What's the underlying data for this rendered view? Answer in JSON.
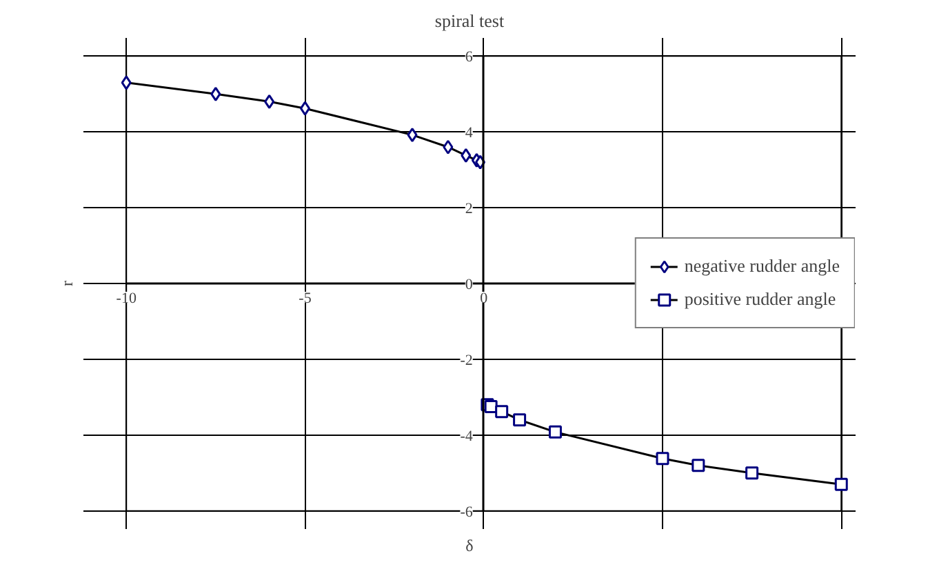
{
  "chart_data": {
    "type": "line",
    "title": "spiral test",
    "xlabel": "δ",
    "ylabel": "r",
    "xlim": [
      -10,
      10
    ],
    "ylim": [
      -6,
      6
    ],
    "xticks": [
      -10,
      -5,
      0,
      {
        "value": 5,
        "label": null
      },
      {
        "value": 10,
        "label": null
      }
    ],
    "yticks": [
      -6,
      -4,
      -2,
      0,
      2,
      4,
      6
    ],
    "grid": true,
    "legend": "right",
    "series": [
      {
        "name": "negative rudder angle",
        "color": "#000080",
        "marker": "diamond",
        "x": [
          -10,
          -7.5,
          -6,
          -5,
          -2,
          -1,
          -0.5,
          -0.2,
          -0.1
        ],
        "values": [
          5.3,
          5.0,
          4.8,
          4.62,
          3.92,
          3.6,
          3.38,
          3.25,
          3.2
        ]
      },
      {
        "name": "positive rudder angle",
        "color": "#000080",
        "marker": "square",
        "x": [
          0.1,
          0.2,
          0.5,
          1,
          2,
          5,
          6,
          7.5,
          10
        ],
        "values": [
          -3.2,
          -3.25,
          -3.38,
          -3.6,
          -3.92,
          -4.62,
          -4.8,
          -5.0,
          -5.3
        ]
      }
    ]
  }
}
